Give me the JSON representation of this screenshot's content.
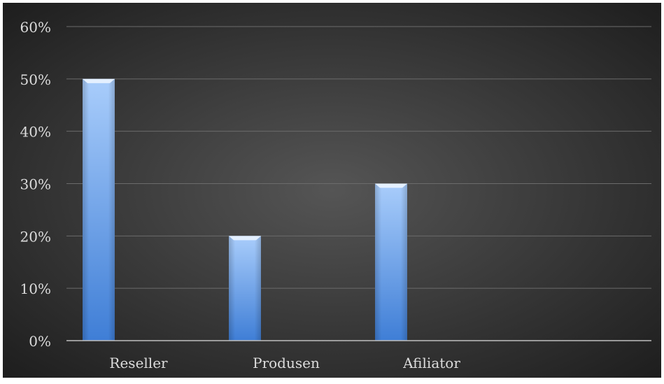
{
  "chart_data": {
    "type": "bar",
    "categories": [
      "Reseller",
      "Produsen",
      "Afiliator"
    ],
    "values": [
      0.5,
      0.2,
      0.3
    ],
    "ylim": [
      0,
      0.6
    ],
    "yticks": [
      0,
      0.1,
      0.2,
      0.3,
      0.4,
      0.5,
      0.6
    ],
    "ytick_labels": [
      "0%",
      "10%",
      "20%",
      "30%",
      "40%",
      "50%",
      "60%"
    ],
    "grid": true,
    "legend": "none",
    "colors": {
      "background_center": "#555555",
      "background_edge": "#1e1e1e",
      "bar_top": "#a9cdfb",
      "bar_bottom": "#3f7ed6",
      "gridline": "#6b6b6b",
      "axis_line": "#bfbfbf",
      "label_text": "#dcdcdc"
    }
  }
}
